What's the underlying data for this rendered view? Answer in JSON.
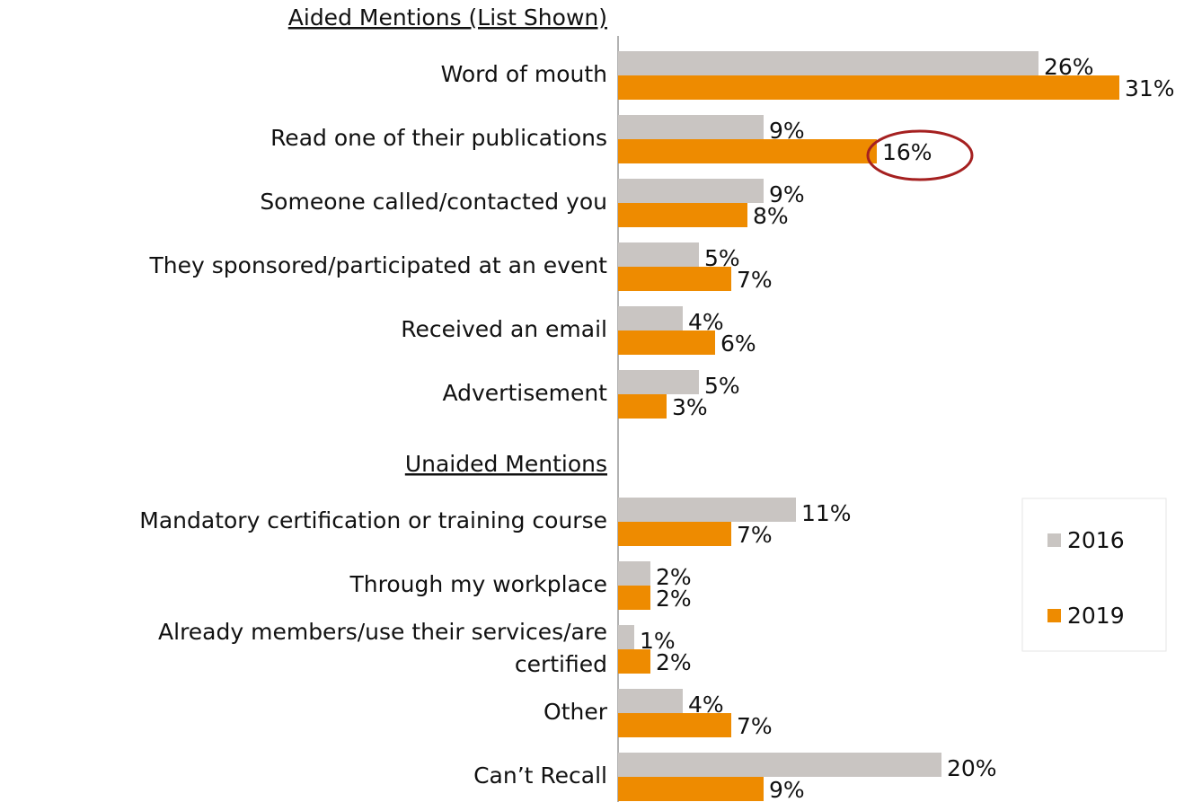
{
  "chart_data": {
    "type": "bar",
    "orientation": "horizontal",
    "sections": [
      {
        "title": "Aided Mentions (List Shown)",
        "first": "Word of mouth"
      },
      {
        "title": "Unaided Mentions",
        "first": "Mandatory certification or training course"
      }
    ],
    "categories": [
      "Word of mouth",
      "Read one of their publications",
      "Someone called/contacted you",
      "They sponsored/participated at an event",
      "Received an email",
      "Advertisement",
      "Mandatory certification or training course",
      "Through my workplace",
      "Already members/use their services/are\ncertified",
      "Other",
      "Can’t Recall"
    ],
    "series": [
      {
        "name": "2016",
        "color": "#c9c5c2",
        "values": [
          26,
          9,
          9,
          5,
          4,
          5,
          11,
          2,
          1,
          4,
          20
        ],
        "value_labels": [
          "26%",
          "9%",
          "9%",
          "5%",
          "4%",
          "5%",
          "11%",
          "2%",
          "1%",
          "4%",
          "20%"
        ]
      },
      {
        "name": "2019",
        "color": "#ee8b00",
        "values": [
          31,
          16,
          8,
          7,
          6,
          3,
          7,
          2,
          2,
          7,
          9
        ],
        "value_labels": [
          "31%",
          "16%",
          "8%",
          "7%",
          "6%",
          "3%",
          "7%",
          "2%",
          "2%",
          "7%",
          "9%"
        ]
      }
    ],
    "xlim": [
      0,
      31
    ],
    "legend": "right"
  }
}
